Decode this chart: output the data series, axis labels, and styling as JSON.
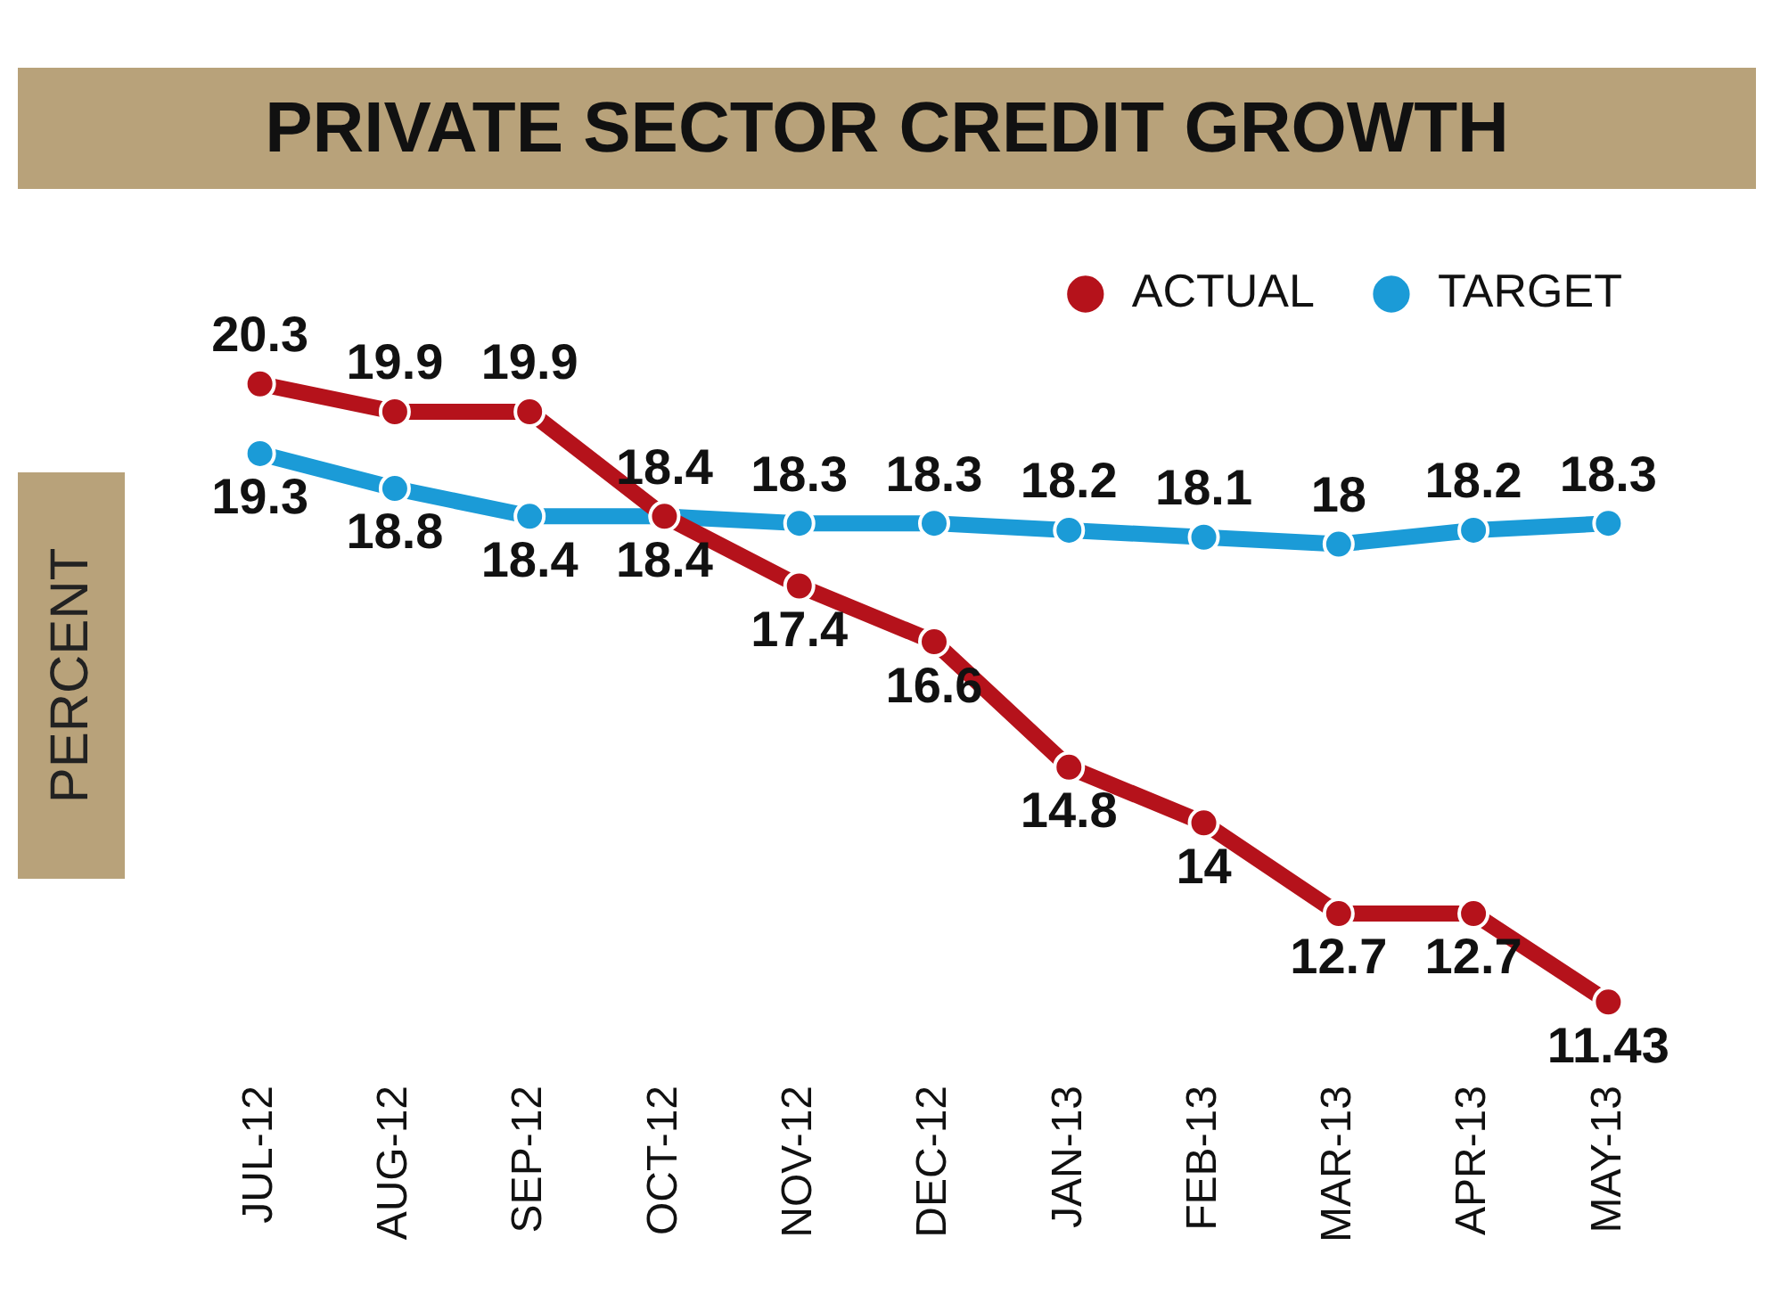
{
  "chart_data": {
    "type": "line",
    "title": "PRIVATE SECTOR CREDIT GROWTH",
    "ylabel": "PERCENT",
    "categories": [
      "JUL-12",
      "AUG-12",
      "SEP-12",
      "OCT-12",
      "NOV-12",
      "DEC-12",
      "JAN-13",
      "FEB-13",
      "MAR-13",
      "APR-13",
      "MAY-13"
    ],
    "series": [
      {
        "name": "ACTUAL",
        "color": "#b5121b",
        "values": [
          20.3,
          19.9,
          19.9,
          18.4,
          17.4,
          16.6,
          14.8,
          14,
          12.7,
          12.7,
          11.43
        ]
      },
      {
        "name": "TARGET",
        "color": "#1b9bd7",
        "values": [
          19.3,
          18.8,
          18.4,
          18.4,
          18.3,
          18.3,
          18.2,
          18.1,
          18,
          18.2,
          18.3
        ]
      }
    ],
    "data_labels": true,
    "legend": "top right",
    "marker": "circle",
    "line_style": "solid",
    "grid": false
  }
}
